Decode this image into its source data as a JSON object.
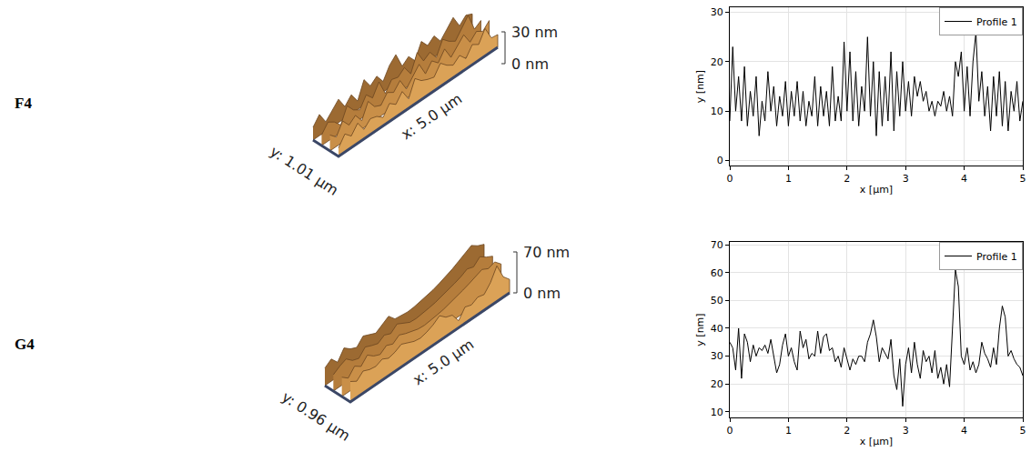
{
  "chart_data": [
    {
      "type": "surface",
      "title": "F4",
      "x_label": "x: 5.0 µm",
      "y_label": "y: 1.01 µm",
      "xlim": [
        0,
        5
      ],
      "ylim": [
        0,
        1.01
      ],
      "zlim": [
        0,
        30
      ],
      "zticks": [
        {
          "value": 0,
          "label": "0 nm"
        },
        {
          "value": 30,
          "label": "30 nm"
        }
      ],
      "x": [
        0,
        0.2,
        0.4,
        0.6,
        0.8,
        1,
        1.2,
        1.4,
        1.6,
        1.8,
        2,
        2.2,
        2.4,
        2.6,
        2.8,
        3,
        3.2,
        3.4,
        3.6,
        3.8,
        4,
        4.2,
        4.4,
        4.6,
        4.8,
        5
      ],
      "y": [
        0,
        0.34,
        0.67,
        1.01
      ],
      "z": [
        [
          8,
          17,
          11,
          19,
          9,
          15,
          13,
          8,
          17,
          12,
          20,
          9,
          24,
          18,
          15,
          13,
          22,
          16,
          12,
          17,
          10,
          19,
          15,
          26,
          13,
          12
        ],
        [
          15,
          9,
          20,
          12,
          17,
          8,
          22,
          13,
          10,
          18,
          14,
          21,
          9,
          16,
          24,
          11,
          19,
          13,
          22,
          10,
          17,
          23,
          12,
          18,
          14,
          20
        ],
        [
          10,
          18,
          14,
          7,
          21,
          13,
          9,
          19,
          12,
          23,
          8,
          17,
          15,
          20,
          10,
          26,
          14,
          18,
          9,
          22,
          16,
          12,
          20,
          28,
          11,
          15
        ],
        [
          12,
          20,
          9,
          16,
          22,
          11,
          18,
          8,
          24,
          14,
          19,
          10,
          21,
          27,
          12,
          17,
          9,
          23,
          15,
          20,
          11,
          18,
          25,
          13,
          19,
          16
        ]
      ]
    },
    {
      "type": "line",
      "x_label": "x [µm]",
      "y_label": "y [nm]",
      "xlim": [
        0,
        5
      ],
      "xticks": [
        0,
        1,
        2,
        3,
        4,
        5
      ],
      "ylim": [
        -1,
        31
      ],
      "yticks": [
        0,
        10,
        20,
        30
      ],
      "grid": true,
      "legend": "top-right",
      "x": [
        0,
        0.05,
        0.1,
        0.15,
        0.2,
        0.25,
        0.3,
        0.35,
        0.4,
        0.45,
        0.5,
        0.55,
        0.6,
        0.65,
        0.7,
        0.75,
        0.8,
        0.85,
        0.9,
        0.95,
        1,
        1.05,
        1.1,
        1.15,
        1.2,
        1.25,
        1.3,
        1.35,
        1.4,
        1.45,
        1.5,
        1.55,
        1.6,
        1.65,
        1.7,
        1.75,
        1.8,
        1.85,
        1.9,
        1.95,
        2,
        2.05,
        2.1,
        2.15,
        2.2,
        2.25,
        2.3,
        2.35,
        2.4,
        2.45,
        2.5,
        2.55,
        2.6,
        2.65,
        2.7,
        2.75,
        2.8,
        2.85,
        2.9,
        2.95,
        3,
        3.05,
        3.1,
        3.15,
        3.2,
        3.25,
        3.3,
        3.35,
        3.4,
        3.45,
        3.5,
        3.55,
        3.6,
        3.65,
        3.7,
        3.75,
        3.8,
        3.85,
        3.9,
        3.95,
        4,
        4.05,
        4.1,
        4.15,
        4.2,
        4.25,
        4.3,
        4.35,
        4.4,
        4.45,
        4.5,
        4.55,
        4.6,
        4.65,
        4.7,
        4.75,
        4.8,
        4.85,
        4.9,
        4.95,
        5
      ],
      "series": [
        {
          "name": "Profile 1",
          "color": "#000000",
          "values": [
            8,
            23,
            10,
            17,
            8,
            19,
            7,
            14,
            9,
            17,
            5,
            12,
            8,
            18,
            10,
            15,
            7,
            13,
            9,
            16,
            7,
            14,
            9,
            16,
            8,
            14,
            7,
            12,
            9,
            17,
            7,
            15,
            9,
            14,
            7,
            19,
            8,
            13,
            8,
            24,
            10,
            22,
            8,
            18,
            7,
            15,
            10,
            25,
            9,
            20,
            5,
            18,
            7,
            17,
            8,
            22,
            6,
            18,
            9,
            20,
            10,
            16,
            9,
            17,
            13,
            16,
            12,
            14,
            10,
            12,
            9,
            12,
            11,
            14,
            10,
            13,
            9,
            20,
            17,
            22,
            10,
            19,
            9,
            20,
            26,
            12,
            18,
            9,
            15,
            6,
            17,
            9,
            18,
            7,
            16,
            6,
            14,
            10,
            16,
            8,
            12
          ]
        }
      ]
    },
    {
      "type": "surface",
      "title": "G4",
      "x_label": "x: 5.0 µm",
      "y_label": "y: 0.96 µm",
      "xlim": [
        0,
        5
      ],
      "ylim": [
        0,
        0.96
      ],
      "zlim": [
        0,
        70
      ],
      "zticks": [
        {
          "value": 0,
          "label": "0 nm"
        },
        {
          "value": 70,
          "label": "70 nm"
        }
      ],
      "x": [
        0,
        0.2,
        0.4,
        0.6,
        0.8,
        1,
        1.2,
        1.4,
        1.6,
        1.8,
        2,
        2.2,
        2.4,
        2.6,
        2.8,
        3,
        3.2,
        3.4,
        3.6,
        3.8,
        4,
        4.2,
        4.4,
        4.6,
        4.8,
        5
      ],
      "y": [
        0,
        0.32,
        0.64,
        0.96
      ],
      "z": [
        [
          35,
          28,
          38,
          33,
          31,
          36,
          30,
          33,
          39,
          34,
          29,
          27,
          30,
          35,
          43,
          33,
          29,
          12,
          28,
          24,
          30,
          27,
          40,
          61,
          35,
          23
        ],
        [
          33,
          24,
          37,
          29,
          41,
          32,
          27,
          35,
          30,
          38,
          33,
          29,
          26,
          25,
          26,
          28,
          30,
          33,
          36,
          40,
          44,
          49,
          53,
          47,
          51,
          40
        ],
        [
          28,
          35,
          40,
          30,
          26,
          38,
          33,
          29,
          36,
          31,
          40,
          34,
          28,
          27,
          28,
          30,
          32,
          35,
          38,
          42,
          46,
          52,
          48,
          58,
          50,
          44
        ],
        [
          30,
          38,
          25,
          42,
          33,
          28,
          40,
          35,
          30,
          37,
          44,
          32,
          30,
          29,
          30,
          32,
          34,
          37,
          41,
          45,
          50,
          56,
          62,
          68,
          60,
          55
        ]
      ]
    },
    {
      "type": "line",
      "x_label": "x [µm]",
      "y_label": "y [nm]",
      "xlim": [
        0,
        5
      ],
      "xticks": [
        0,
        1,
        2,
        3,
        4,
        5
      ],
      "ylim": [
        8,
        71
      ],
      "yticks": [
        10,
        20,
        30,
        40,
        50,
        60,
        70
      ],
      "grid": true,
      "legend": "top-right",
      "x": [
        0,
        0.05,
        0.1,
        0.15,
        0.2,
        0.25,
        0.3,
        0.35,
        0.4,
        0.45,
        0.5,
        0.55,
        0.6,
        0.65,
        0.7,
        0.75,
        0.8,
        0.85,
        0.9,
        0.95,
        1,
        1.05,
        1.1,
        1.15,
        1.2,
        1.25,
        1.3,
        1.35,
        1.4,
        1.45,
        1.5,
        1.55,
        1.6,
        1.65,
        1.7,
        1.75,
        1.8,
        1.85,
        1.9,
        1.95,
        2,
        2.05,
        2.1,
        2.15,
        2.2,
        2.25,
        2.3,
        2.35,
        2.4,
        2.45,
        2.5,
        2.55,
        2.6,
        2.65,
        2.7,
        2.75,
        2.8,
        2.85,
        2.9,
        2.95,
        3,
        3.05,
        3.1,
        3.15,
        3.2,
        3.25,
        3.3,
        3.35,
        3.4,
        3.45,
        3.5,
        3.55,
        3.6,
        3.65,
        3.7,
        3.75,
        3.8,
        3.85,
        3.9,
        3.95,
        4,
        4.05,
        4.1,
        4.15,
        4.2,
        4.25,
        4.3,
        4.35,
        4.4,
        4.45,
        4.5,
        4.55,
        4.6,
        4.65,
        4.7,
        4.75,
        4.8,
        4.85,
        4.9,
        4.95,
        5
      ],
      "series": [
        {
          "name": "Profile 1",
          "color": "#000000",
          "values": [
            35,
            33,
            25,
            40,
            22,
            38,
            35,
            28,
            34,
            30,
            33,
            32,
            34,
            31,
            36,
            30,
            24,
            27,
            34,
            38,
            30,
            33,
            28,
            25,
            39,
            33,
            36,
            29,
            31,
            30,
            39,
            31,
            37,
            38,
            32,
            33,
            28,
            30,
            26,
            33,
            29,
            25,
            29,
            27,
            30,
            30,
            28,
            35,
            38,
            43,
            37,
            28,
            33,
            31,
            29,
            36,
            23,
            18,
            29,
            12,
            27,
            33,
            24,
            35,
            27,
            22,
            32,
            28,
            30,
            24,
            32,
            22,
            26,
            20,
            27,
            19,
            40,
            61,
            55,
            30,
            27,
            33,
            25,
            28,
            24,
            27,
            35,
            31,
            29,
            26,
            33,
            27,
            40,
            48,
            44,
            30,
            32,
            29,
            27,
            26,
            23
          ]
        }
      ]
    }
  ]
}
